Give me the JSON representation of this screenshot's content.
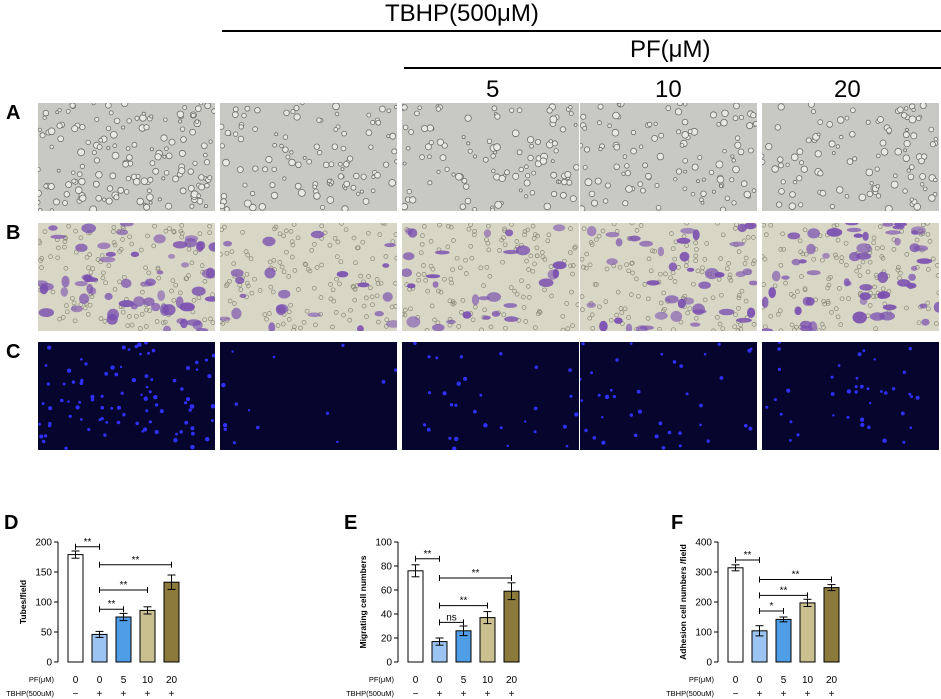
{
  "header": {
    "treatment": "TBHP(500μM)",
    "subgroup": "PF(μM)",
    "doses": [
      "5",
      "10",
      "20"
    ]
  },
  "panel_letters": {
    "A": "A",
    "B": "B",
    "C": "C",
    "D": "D",
    "E": "E",
    "F": "F"
  },
  "image_rows": [
    {
      "letter": "A",
      "kind": "tube-formation",
      "bg": "#c9c9c4"
    },
    {
      "letter": "B",
      "kind": "transwell-crystal-violet",
      "bg": "#d8d6c4",
      "stain": "#7a4fb0"
    },
    {
      "letter": "C",
      "kind": "dapi-fluorescence",
      "bg": "#05052e",
      "dot": "#3030ff"
    }
  ],
  "bottom_labels": {
    "pf_label": "PF(μM)",
    "tbhp_label": "TBHP(500uM)",
    "pf_values": [
      "0",
      "0",
      "5",
      "10",
      "20"
    ],
    "tbhp_signs": [
      "−",
      "+",
      "+",
      "+",
      "+"
    ]
  },
  "colors": {
    "bar_fills": [
      "#ffffff",
      "#9cc4f2",
      "#4f9de6",
      "#c9bf8f",
      "#8c7a3c"
    ]
  },
  "chart_data": [
    {
      "type": "bar",
      "panel": "D",
      "ylabel": "Tubes/field",
      "ylim": [
        0,
        200
      ],
      "yticks": [
        0,
        50,
        100,
        150,
        200
      ],
      "categories": [
        "0/−",
        "0/+",
        "5/+",
        "10/+",
        "20/+"
      ],
      "values": [
        179,
        46,
        75,
        86,
        133
      ],
      "errors": [
        6,
        5,
        6,
        6,
        12
      ],
      "significance": [
        {
          "from": 0,
          "to": 1,
          "label": "**",
          "y": 192
        },
        {
          "from": 1,
          "to": 4,
          "label": "**",
          "y": 162
        },
        {
          "from": 1,
          "to": 3,
          "label": "**",
          "y": 120
        },
        {
          "from": 1,
          "to": 2,
          "label": "**",
          "y": 88
        }
      ]
    },
    {
      "type": "bar",
      "panel": "E",
      "ylabel": "Migrating cell numbers",
      "ylim": [
        0,
        100
      ],
      "yticks": [
        0,
        20,
        40,
        60,
        80,
        100
      ],
      "categories": [
        "0/−",
        "0/+",
        "5/+",
        "10/+",
        "20/+"
      ],
      "values": [
        76,
        17,
        26,
        37,
        59
      ],
      "errors": [
        5,
        3,
        4,
        5,
        7
      ],
      "significance": [
        {
          "from": 0,
          "to": 1,
          "label": "**",
          "y": 86
        },
        {
          "from": 1,
          "to": 4,
          "label": "**",
          "y": 70
        },
        {
          "from": 1,
          "to": 3,
          "label": "**",
          "y": 47
        },
        {
          "from": 1,
          "to": 2,
          "label": "ns",
          "y": 33
        }
      ]
    },
    {
      "type": "bar",
      "panel": "F",
      "ylabel": "Adhesion cell numbers /field",
      "ylim": [
        0,
        400
      ],
      "yticks": [
        0,
        100,
        200,
        300,
        400
      ],
      "categories": [
        "0/−",
        "0/+",
        "5/+",
        "10/+",
        "20/+"
      ],
      "values": [
        314,
        104,
        142,
        197,
        248
      ],
      "errors": [
        10,
        17,
        8,
        12,
        10
      ],
      "significance": [
        {
          "from": 0,
          "to": 1,
          "label": "**",
          "y": 340
        },
        {
          "from": 1,
          "to": 4,
          "label": "**",
          "y": 275
        },
        {
          "from": 1,
          "to": 3,
          "label": "**",
          "y": 222
        },
        {
          "from": 1,
          "to": 2,
          "label": "*",
          "y": 170
        }
      ]
    }
  ]
}
